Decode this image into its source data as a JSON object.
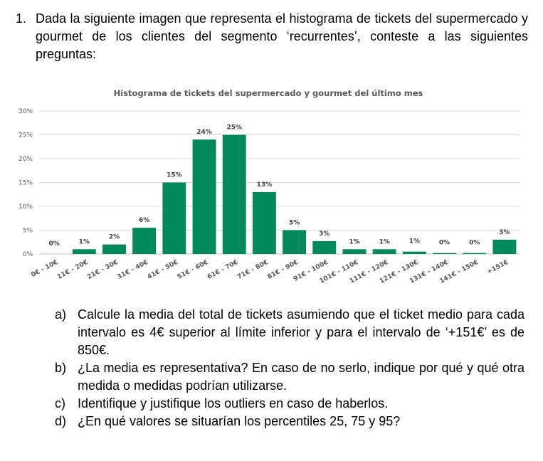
{
  "question": {
    "number": "1.",
    "text": "Dada la siguiente imagen que representa el histograma de tickets del supermercado y gourmet de los clientes del segmento ‘recurrentes’, conteste a las siguientes preguntas:"
  },
  "chart_data": {
    "type": "bar",
    "title": "Histograma de tickets del supermercado y gourmet del último mes",
    "categories": [
      "0€ - 10€",
      "11€ - 20€",
      "21€ - 30€",
      "31€ - 40€",
      "41€ - 50€",
      "51€ - 60€",
      "61€ - 70€",
      "71€ - 80€",
      "81€ - 90€",
      "91€ - 100€",
      "101€ - 110€",
      "111€ - 120€",
      "121€ - 130€",
      "131€ - 140€",
      "141€ - 150€",
      "+151€"
    ],
    "values": [
      0.0,
      1.0,
      2.0,
      5.5,
      15.0,
      24.0,
      25.0,
      13.0,
      5.0,
      2.7,
      1.0,
      1.0,
      0.5,
      0.2,
      0.2,
      3.0
    ],
    "data_labels": [
      "0%",
      "1%",
      "2%",
      "6%",
      "15%",
      "24%",
      "25%",
      "13%",
      "5%",
      "3%",
      "1%",
      "1%",
      "1%",
      "0%",
      "0%",
      "3%"
    ],
    "yticks": [
      "0%",
      "5%",
      "10%",
      "15%",
      "20%",
      "25%",
      "30%"
    ],
    "ylim": [
      0,
      30
    ],
    "grid": true,
    "bar_color": "#038a5c",
    "xlabel": "",
    "ylabel": ""
  },
  "subquestions": [
    {
      "letter": "a)",
      "text": "Calcule la media del total de tickets asumiendo que el ticket medio para cada intervalo es 4€ superior al límite inferior y para el intervalo de ‘+151€’ es de 850€."
    },
    {
      "letter": "b)",
      "text": "¿La media es representativa? En caso de no serlo, indique por qué y qué otra medida o medidas podrían utilizarse."
    },
    {
      "letter": "c)",
      "text": "Identifique y justifique los outliers en caso de haberlos."
    },
    {
      "letter": "d)",
      "text": "¿En qué valores se situarían los percentiles 25, 75 y 95?"
    }
  ]
}
